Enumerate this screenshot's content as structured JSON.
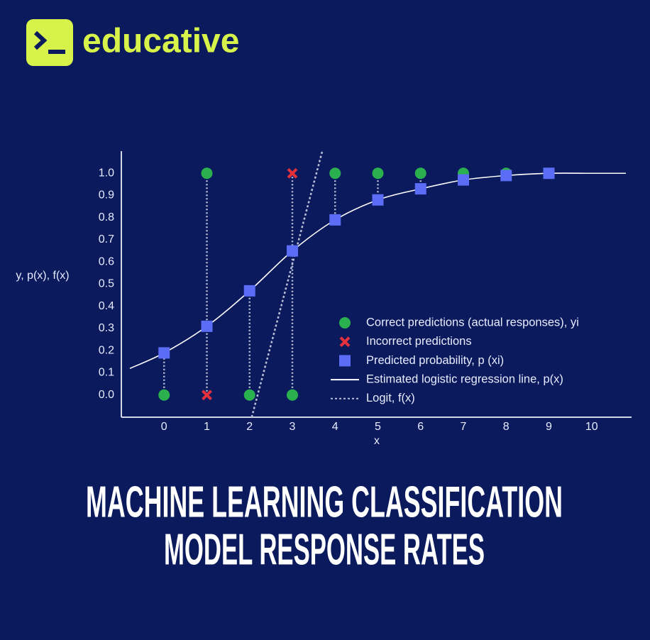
{
  "brand": "educative",
  "chart_data": {
    "type": "scatter",
    "title_lines": [
      "MACHINE LEARNING CLASSIFICATION",
      "MODEL RESPONSE RATES"
    ],
    "xlabel": "x",
    "ylabel": "y, p(x), f(x)",
    "xlim": [
      -1,
      11
    ],
    "ylim": [
      -0.1,
      1.1
    ],
    "xticks": [
      0,
      1,
      2,
      3,
      4,
      5,
      6,
      7,
      8,
      9,
      10
    ],
    "yticks": [
      {
        "value": 0,
        "label": "0.0"
      },
      0.1,
      0.2,
      0.3,
      0.4,
      0.5,
      0.6,
      0.7,
      0.8,
      0.9,
      {
        "value": 1,
        "label": "1.0"
      }
    ],
    "grid": false,
    "series": [
      {
        "name": "Correct predictions (actual responses), yi",
        "marker": "circle",
        "color": "#2bb04f",
        "x": [
          0,
          1,
          2,
          3,
          4,
          5,
          6,
          7,
          8
        ],
        "values": [
          0,
          1,
          0,
          0,
          1,
          1,
          1,
          1,
          1
        ]
      },
      {
        "name": "Incorrect predictions",
        "marker": "cross",
        "color": "#e5313c",
        "x": [
          1,
          3
        ],
        "values": [
          0,
          1
        ]
      },
      {
        "name": "Predicted probability, p (xi)",
        "marker": "square",
        "color": "#5b6cf5",
        "x": [
          0,
          1,
          2,
          3,
          4,
          5,
          6,
          7,
          8,
          9
        ],
        "values": [
          0.19,
          0.31,
          0.47,
          0.65,
          0.79,
          0.88,
          0.93,
          0.97,
          0.99,
          1.0
        ]
      },
      {
        "name": "Estimated logistic regression line, p(x)",
        "marker": "line",
        "color": "#ffffff",
        "x": [
          -0.8,
          0,
          1,
          2,
          3,
          4,
          5,
          6,
          7,
          8,
          9,
          10,
          10.8
        ],
        "values": [
          0.12,
          0.19,
          0.31,
          0.47,
          0.65,
          0.79,
          0.88,
          0.93,
          0.97,
          0.99,
          1.0,
          1.0,
          1.0
        ]
      },
      {
        "name": "Logit, f(x)",
        "marker": "dashed",
        "color": "#b8bfd6",
        "x": [
          2.05,
          3.7
        ],
        "values": [
          -0.1,
          1.1
        ]
      }
    ]
  }
}
